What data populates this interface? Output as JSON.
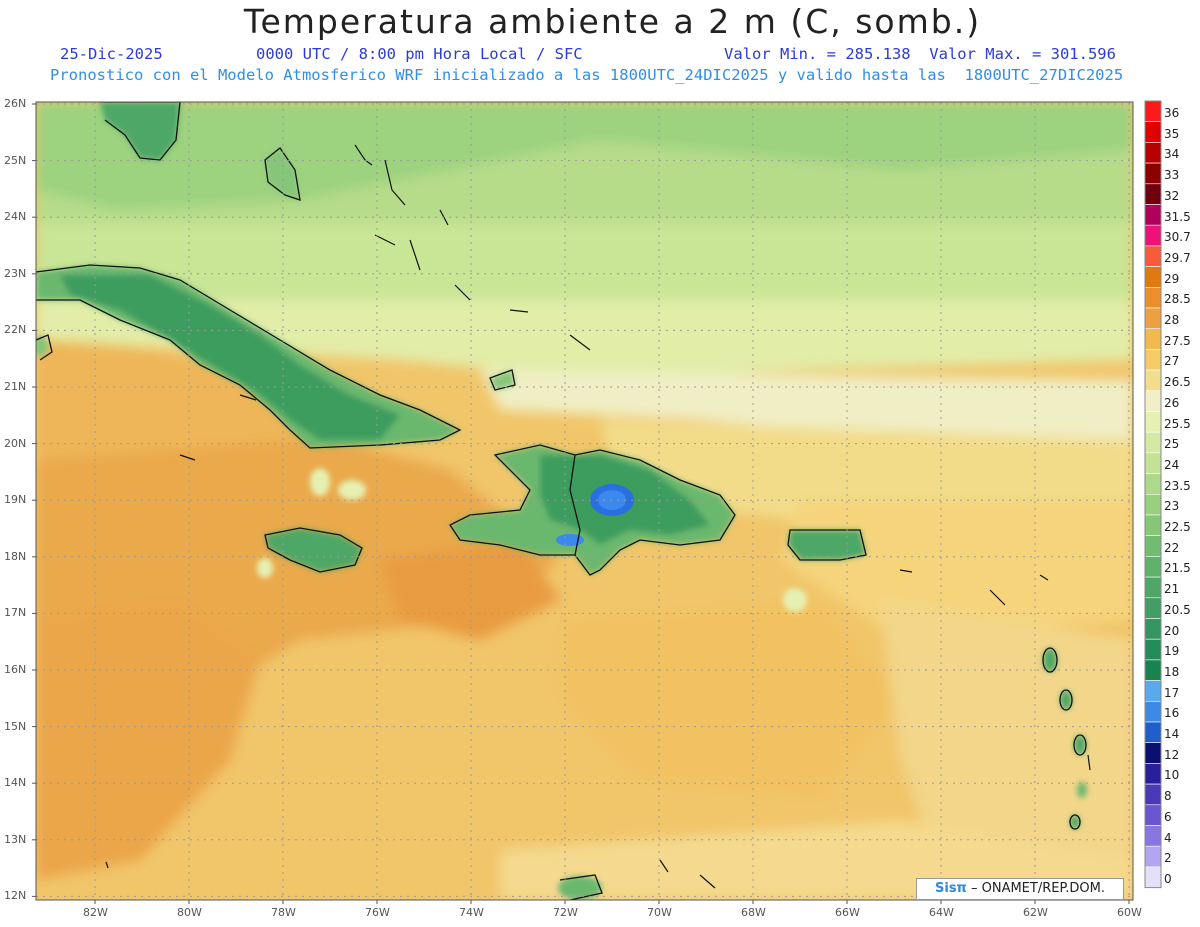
{
  "header": {
    "title": "Temperatura ambiente a 2 m (C, somb.)",
    "date": "25-Dic-2025",
    "time": "0000 UTC / 8:00 pm Hora Local / SFC",
    "minmax": "Valor Min. = 285.138  Valor Max. = 301.596",
    "model_line": "Pronostico con el Modelo Atmosferico WRF inicializado a las 1800UTC_24DIC2025 y valido hasta las  1800UTC_27DIC2025"
  },
  "axes": {
    "lat_labels": [
      "26N",
      "25N",
      "24N",
      "23N",
      "22N",
      "21N",
      "20N",
      "19N",
      "18N",
      "17N",
      "16N",
      "15N",
      "14N",
      "13N",
      "12N"
    ],
    "lon_labels": [
      "82W",
      "80W",
      "78W",
      "76W",
      "74W",
      "72W",
      "70W",
      "68W",
      "66W",
      "64W",
      "62W",
      "60W"
    ]
  },
  "colorbar": {
    "labels": [
      "36",
      "35",
      "34",
      "33",
      "32",
      "31.5",
      "30.7",
      "29.7",
      "29",
      "28.5",
      "28",
      "27.5",
      "27",
      "26.5",
      "26",
      "25.5",
      "25",
      "24",
      "23.5",
      "23",
      "22.5",
      "22",
      "21.5",
      "21",
      "20.5",
      "20",
      "19",
      "18",
      "17",
      "16",
      "14",
      "12",
      "10",
      "8",
      "6",
      "4",
      "2",
      "0"
    ],
    "colors": [
      "#ff1a1a",
      "#e00000",
      "#b80000",
      "#8c0000",
      "#700010",
      "#b0005a",
      "#ee1177",
      "#f85a3c",
      "#e07a10",
      "#eb8f2c",
      "#eda040",
      "#f3b84e",
      "#f6cb66",
      "#f2dd8e",
      "#f2efc8",
      "#e6f0b3",
      "#d4eaa2",
      "#c2e394",
      "#acd98a",
      "#98d07f",
      "#85c679",
      "#72bc72",
      "#5fb26c",
      "#4ea767",
      "#419d63",
      "#349560",
      "#238c5a",
      "#17834f",
      "#5aa8f0",
      "#3d8ae6",
      "#1f5fcc",
      "#0a0f70",
      "#2a1e9a",
      "#4a3ab8",
      "#6a56d0",
      "#8a76e0",
      "#b2a4f0",
      "#e4e0f8"
    ]
  },
  "credit": {
    "brand": "Sisπ",
    "text": " –  ONAMET/REP.DOM."
  }
}
